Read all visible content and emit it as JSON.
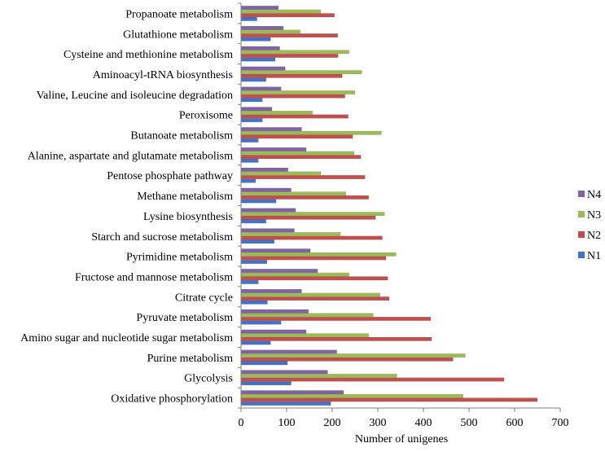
{
  "chart_data": {
    "type": "bar",
    "orientation": "horizontal",
    "title": "",
    "xlabel": "Number of unigenes",
    "ylabel": "",
    "xlim": [
      0,
      700
    ],
    "x_ticks": [
      0,
      100,
      200,
      300,
      400,
      500,
      600,
      700
    ],
    "grid": false,
    "legend_position": "right",
    "categories": [
      "Oxidative phosphorylation",
      "Glycolysis",
      "Purine metabolism",
      "Amino sugar and nucleotide sugar metabolism",
      "Pyruvate metabolism",
      "Citrate cycle",
      "Fructose and mannose metabolism",
      "Pyrimidine metabolism",
      "Starch and sucrose metabolism",
      "Lysine biosynthesis",
      "Methane metabolism",
      "Pentose phosphate pathway",
      "Alanine, aspartate and glutamate metabolism",
      "Butanoate metabolism",
      "Peroxisome",
      "Valine, Leucine and isoleucine degradation",
      "Aminoacyl-tRNA biosynthesis",
      "Cysteine and methionine metabolism",
      "Glutathione metabolism",
      "Propanoate metabolism"
    ],
    "series": [
      {
        "name": "N1",
        "color": "#4472C4",
        "values": [
          197,
          110,
          102,
          65,
          88,
          58,
          38,
          57,
          73,
          55,
          77,
          32,
          38,
          38,
          47,
          47,
          55,
          75,
          65,
          35
        ]
      },
      {
        "name": "N2",
        "color": "#C0504D",
        "values": [
          650,
          577,
          465,
          418,
          416,
          325,
          322,
          318,
          310,
          295,
          280,
          272,
          263,
          245,
          235,
          228,
          222,
          213,
          212,
          205
        ]
      },
      {
        "name": "N3",
        "color": "#9BBB59",
        "values": [
          487,
          342,
          492,
          280,
          290,
          305,
          237,
          340,
          218,
          315,
          230,
          175,
          248,
          308,
          157,
          250,
          265,
          237,
          130,
          175
        ]
      },
      {
        "name": "N4",
        "color": "#8064A2",
        "values": [
          225,
          190,
          210,
          143,
          148,
          133,
          168,
          152,
          117,
          120,
          110,
          103,
          143,
          133,
          68,
          88,
          97,
          85,
          93,
          82
        ]
      }
    ]
  },
  "legend": {
    "items": [
      {
        "label": "N4",
        "color": "#8064A2"
      },
      {
        "label": "N3",
        "color": "#9BBB59"
      },
      {
        "label": "N2",
        "color": "#C0504D"
      },
      {
        "label": "N1",
        "color": "#4472C4"
      }
    ]
  }
}
